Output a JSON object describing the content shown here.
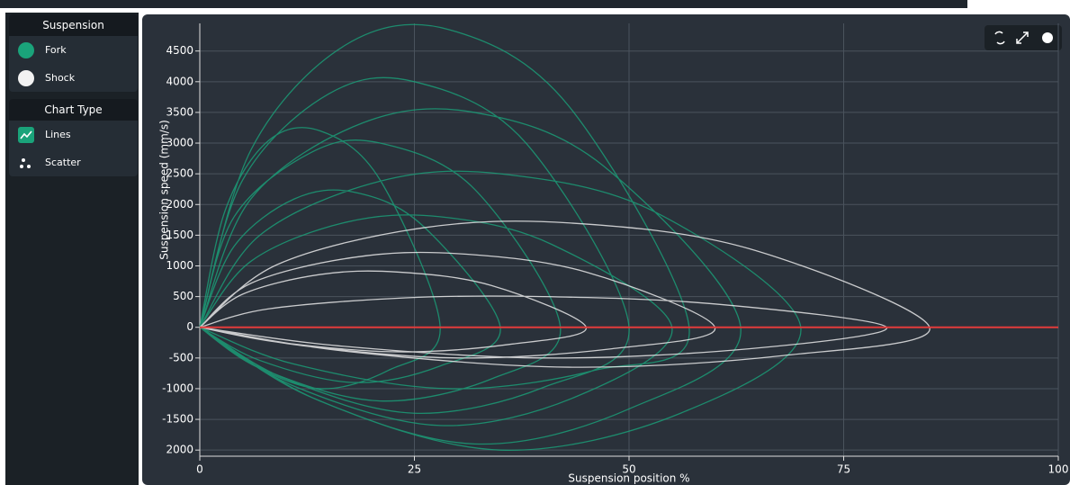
{
  "sidebar": {
    "suspension_title": "Suspension",
    "chart_type_title": "Chart Type",
    "chart_types": [
      "Lines",
      "Scatter"
    ]
  },
  "chart_data": {
    "type": "line",
    "x_label": "Suspension position %",
    "y_label": "Suspension speed (mm/s)",
    "xlim": [
      0,
      100
    ],
    "xticks": [
      0,
      25,
      50,
      75,
      100
    ],
    "ylim": [
      -2100,
      4950
    ],
    "yticks": [
      {
        "value": -2000,
        "label": "2000"
      },
      -1500,
      -1000,
      -500,
      0,
      500,
      1000,
      1500,
      2000,
      2500,
      3000,
      3500,
      4000,
      4500
    ],
    "grid": true,
    "zero_line_color": "#e23b3b",
    "series": [
      {
        "name": "Fork",
        "color": "#1aa37a",
        "x": [
          0,
          6,
          17,
          29,
          43,
          57,
          46,
          29,
          11,
          0,
          null,
          0,
          5,
          15,
          25,
          38,
          50,
          40,
          25,
          10,
          0,
          null,
          0,
          6,
          19,
          32,
          47,
          63,
          50,
          32,
          13,
          0,
          null,
          0,
          4,
          13,
          21,
          32,
          42,
          34,
          21,
          8,
          0,
          null,
          0,
          7,
          21,
          35,
          53,
          70,
          56,
          35,
          14,
          0,
          null,
          0,
          4,
          11,
          18,
          26,
          35,
          28,
          18,
          7,
          0,
          null,
          0,
          6,
          17,
          28,
          41,
          55,
          44,
          28,
          11,
          0,
          null,
          0,
          3,
          8,
          14,
          21,
          28,
          22,
          14,
          6,
          0
        ],
        "values": [
          0,
          2900,
          4600,
          4850,
          3600,
          0,
          -700,
          -1000,
          -600,
          0,
          null,
          0,
          2400,
          3800,
          4000,
          3000,
          0,
          -980,
          -1400,
          -840,
          0,
          null,
          0,
          2100,
          3330,
          3500,
          2630,
          0,
          -1330,
          -1900,
          -1140,
          0,
          null,
          0,
          1800,
          2850,
          3000,
          2250,
          0,
          -840,
          -1200,
          -720,
          0,
          null,
          0,
          1500,
          2380,
          2500,
          1880,
          0,
          -1400,
          -2000,
          -1200,
          0,
          null,
          0,
          1320,
          2090,
          2200,
          1650,
          0,
          -630,
          -900,
          -540,
          0,
          null,
          0,
          1080,
          1710,
          1800,
          1350,
          0,
          -1120,
          -1600,
          -960,
          0,
          null,
          0,
          1920,
          3040,
          3200,
          2400,
          0,
          -700,
          -1000,
          -600,
          0
        ]
      },
      {
        "name": "Shock",
        "color": "#f2f2f2",
        "x": [
          0,
          9,
          26,
          43,
          64,
          85,
          68,
          43,
          17,
          0,
          null,
          0,
          8,
          24,
          40,
          60,
          80,
          64,
          40,
          16,
          0,
          null,
          0,
          6,
          18,
          30,
          45,
          60,
          48,
          30,
          12,
          0,
          null,
          0,
          5,
          14,
          23,
          34,
          45,
          36,
          23,
          9,
          0
        ],
        "values": [
          0,
          1020,
          1620,
          1700,
          1280,
          0,
          -460,
          -650,
          -390,
          0,
          null,
          0,
          300,
          480,
          500,
          380,
          0,
          -350,
          -500,
          -300,
          0,
          null,
          0,
          720,
          1140,
          1200,
          900,
          0,
          -350,
          -500,
          -300,
          0,
          null,
          0,
          540,
          860,
          900,
          680,
          0,
          -280,
          -400,
          -240,
          0
        ]
      }
    ]
  }
}
